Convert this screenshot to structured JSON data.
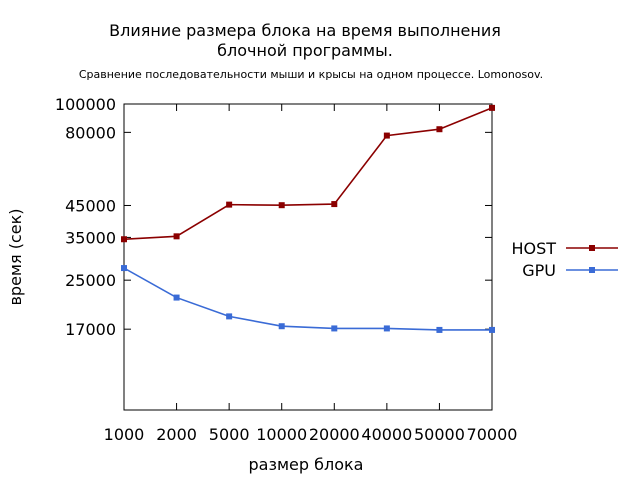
{
  "chart_data": {
    "type": "line",
    "title_lines": [
      "Влияние размера блока на время выполнения",
      "блочной программы."
    ],
    "subtitle": "Сравнение последовательности мыши и крысы на одном процессе. Lomonosov.",
    "xlabel": "размер блока",
    "ylabel": "время (сек)",
    "categories": [
      "1000",
      "2000",
      "5000",
      "10000",
      "20000",
      "40000",
      "50000",
      "70000"
    ],
    "y_scale": "log",
    "ylim": [
      9000,
      100000
    ],
    "yticks": [
      17000,
      25000,
      35000,
      45000,
      80000,
      100000
    ],
    "ytick_labels": [
      "17000",
      "25000",
      "35000",
      "45000",
      "80000",
      "100000"
    ],
    "grid": false,
    "legend_position": "right",
    "series": [
      {
        "name": "HOST",
        "color": "#8b0000",
        "values": [
          34500,
          35300,
          45300,
          45100,
          45500,
          78000,
          82000,
          97000
        ]
      },
      {
        "name": "GPU",
        "color": "#3a6bd6",
        "values": [
          27500,
          21800,
          18800,
          17400,
          17100,
          17100,
          16900,
          16900
        ]
      }
    ]
  }
}
